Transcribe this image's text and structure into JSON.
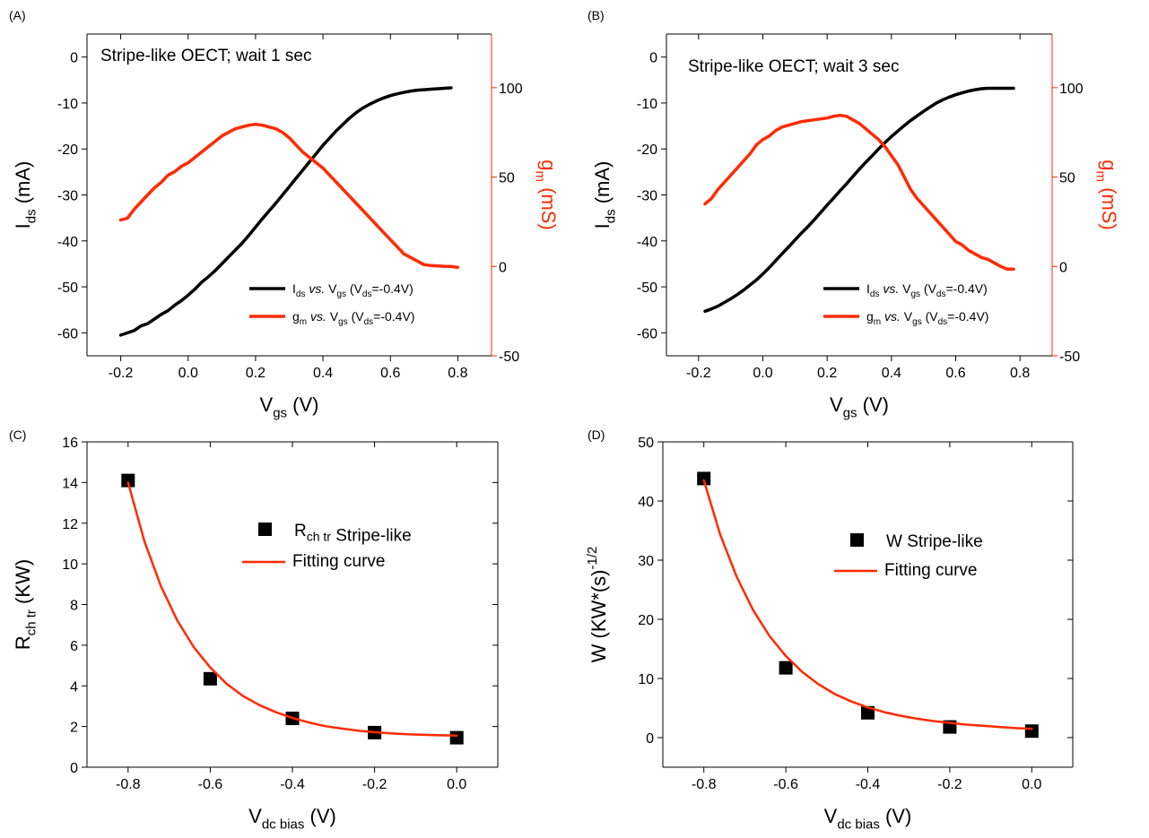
{
  "chart_data": [
    {
      "panel": "(A)",
      "type": "line",
      "annotation": "Stripe-like OECT; wait 1 sec",
      "x_label": {
        "main": "V",
        "sub": "gs",
        "tail": " (V)"
      },
      "y_label": {
        "main": "I",
        "sub": "ds",
        "tail": " (mA)"
      },
      "y2_label": {
        "main": "g",
        "sub": "m",
        "tail": " (mS)"
      },
      "xlim": [
        -0.3,
        0.9
      ],
      "ylim": [
        -65,
        5
      ],
      "y2lim": [
        -50,
        130
      ],
      "x_ticks": [
        "-0.2",
        "0.0",
        "0.2",
        "0.4",
        "0.6",
        "0.8"
      ],
      "y_ticks": [
        "0",
        "-10",
        "-20",
        "-30",
        "-40",
        "-50",
        "-60"
      ],
      "y2_ticks": [
        "100",
        "50",
        "0",
        "-50"
      ],
      "right_color": "#ff2a00",
      "series": [
        {
          "name": "Ids vs. Vgs (Vds=-0.4V)",
          "legend": {
            "main": "I",
            "sub": "ds",
            "mid": " vs.",
            "main2": " V",
            "sub2": "gs",
            "tail": " (V",
            "sub3": "ds",
            "tail2": "=-0.4V)"
          },
          "color": "#000000",
          "axis": "left",
          "x": [
            -0.2,
            -0.18,
            -0.16,
            -0.14,
            -0.12,
            -0.1,
            -0.08,
            -0.06,
            -0.04,
            -0.02,
            0.0,
            0.02,
            0.04,
            0.06,
            0.08,
            0.1,
            0.12,
            0.14,
            0.16,
            0.18,
            0.2,
            0.22,
            0.24,
            0.26,
            0.28,
            0.3,
            0.32,
            0.34,
            0.36,
            0.38,
            0.4,
            0.42,
            0.44,
            0.46,
            0.48,
            0.5,
            0.52,
            0.54,
            0.56,
            0.58,
            0.6,
            0.62,
            0.64,
            0.66,
            0.68,
            0.7,
            0.72,
            0.74,
            0.76,
            0.78
          ],
          "y": [
            -60.5,
            -60,
            -59.5,
            -58.5,
            -58,
            -57,
            -56,
            -55.2,
            -54,
            -53,
            -51.8,
            -50.5,
            -49,
            -47.8,
            -46.5,
            -45,
            -43.5,
            -42,
            -40.5,
            -38.8,
            -37,
            -35.2,
            -33.5,
            -31.8,
            -30,
            -28.2,
            -26.4,
            -24.6,
            -22.8,
            -21,
            -19.2,
            -17.6,
            -16,
            -14.6,
            -13.2,
            -12,
            -11,
            -10.2,
            -9.5,
            -8.9,
            -8.4,
            -8,
            -7.7,
            -7.4,
            -7.2,
            -7.1,
            -7.0,
            -6.9,
            -6.8,
            -6.7
          ]
        },
        {
          "name": "gm vs. Vgs (Vds=-0.4V)",
          "legend": {
            "main": "g",
            "sub": "m",
            "mid": " vs.",
            "main2": " V",
            "sub2": "gs",
            "tail": " (V",
            "sub3": "ds",
            "tail2": "=-0.4V)"
          },
          "color": "#ff2a00",
          "axis": "right",
          "x": [
            -0.2,
            -0.18,
            -0.16,
            -0.14,
            -0.12,
            -0.1,
            -0.08,
            -0.06,
            -0.04,
            -0.02,
            0.0,
            0.02,
            0.04,
            0.06,
            0.08,
            0.1,
            0.12,
            0.14,
            0.16,
            0.18,
            0.2,
            0.22,
            0.24,
            0.26,
            0.28,
            0.3,
            0.32,
            0.34,
            0.36,
            0.38,
            0.4,
            0.42,
            0.44,
            0.46,
            0.48,
            0.5,
            0.52,
            0.54,
            0.56,
            0.58,
            0.6,
            0.62,
            0.64,
            0.66,
            0.68,
            0.7,
            0.72,
            0.74,
            0.76,
            0.78,
            0.8
          ],
          "y": [
            26,
            27,
            32,
            36,
            40,
            44,
            47,
            51,
            53,
            56,
            58,
            61,
            64,
            67,
            70,
            73,
            75,
            77,
            78,
            79,
            79.5,
            79,
            78,
            77,
            75,
            72,
            68,
            64,
            61,
            58,
            55,
            51,
            47,
            43,
            39,
            35,
            31,
            27,
            23,
            19,
            15,
            11,
            7,
            5,
            3,
            1,
            0.5,
            0.3,
            0.1,
            0,
            -0.5
          ]
        }
      ]
    },
    {
      "panel": "(B)",
      "type": "line",
      "annotation": "Stripe-like OECT; wait 3 sec",
      "x_label": {
        "main": "V",
        "sub": "gs",
        "tail": " (V)"
      },
      "y_label": {
        "main": "I",
        "sub": "ds",
        "tail": " (mA)"
      },
      "y2_label": {
        "main": "g",
        "sub": "m",
        "tail": " (mS)"
      },
      "xlim": [
        -0.3,
        0.9
      ],
      "ylim": [
        -65,
        5
      ],
      "y2lim": [
        -50,
        130
      ],
      "x_ticks": [
        "-0.2",
        "0.0",
        "0.2",
        "0.4",
        "0.6",
        "0.8"
      ],
      "y_ticks": [
        "0",
        "-10",
        "-20",
        "-30",
        "-40",
        "-50",
        "-60"
      ],
      "y2_ticks": [
        "100",
        "50",
        "0",
        "-50"
      ],
      "right_color": "#ff2a00",
      "series": [
        {
          "name": "Ids vs. Vgs (Vds=-0.4V)",
          "legend": {
            "main": "I",
            "sub": "ds",
            "mid": " vs.",
            "main2": " V",
            "sub2": "gs",
            "tail": " (V",
            "sub3": "ds",
            "tail2": "=-0.4V)"
          },
          "color": "#000000",
          "axis": "left",
          "x": [
            -0.18,
            -0.16,
            -0.14,
            -0.12,
            -0.1,
            -0.08,
            -0.06,
            -0.04,
            -0.02,
            0.0,
            0.02,
            0.04,
            0.06,
            0.08,
            0.1,
            0.12,
            0.14,
            0.16,
            0.18,
            0.2,
            0.22,
            0.24,
            0.26,
            0.28,
            0.3,
            0.32,
            0.34,
            0.36,
            0.38,
            0.4,
            0.42,
            0.44,
            0.46,
            0.48,
            0.5,
            0.52,
            0.54,
            0.56,
            0.58,
            0.6,
            0.62,
            0.64,
            0.66,
            0.68,
            0.7,
            0.72,
            0.74,
            0.76,
            0.78
          ],
          "y": [
            -55.3,
            -54.8,
            -54.2,
            -53.4,
            -52.6,
            -51.7,
            -50.7,
            -49.6,
            -48.5,
            -47.2,
            -45.8,
            -44.3,
            -42.8,
            -41.3,
            -39.8,
            -38.3,
            -36.9,
            -35.4,
            -33.8,
            -32.2,
            -30.7,
            -29.1,
            -27.6,
            -26.0,
            -24.4,
            -22.9,
            -21.5,
            -20.0,
            -18.6,
            -17.3,
            -16.1,
            -14.9,
            -13.8,
            -12.8,
            -11.8,
            -10.9,
            -10.0,
            -9.3,
            -8.7,
            -8.2,
            -7.8,
            -7.4,
            -7.1,
            -6.9,
            -6.8,
            -6.8,
            -6.8,
            -6.8,
            -6.8
          ]
        },
        {
          "name": "gm vs. Vgs (Vds=-0.4V)",
          "legend": {
            "main": "g",
            "sub": "m",
            "mid": " vs.",
            "main2": " V",
            "sub2": "gs",
            "tail": " (V",
            "sub3": "ds",
            "tail2": "=-0.4V)"
          },
          "color": "#ff2a00",
          "axis": "right",
          "x": [
            -0.18,
            -0.16,
            -0.14,
            -0.12,
            -0.1,
            -0.08,
            -0.06,
            -0.04,
            -0.02,
            0.0,
            0.02,
            0.04,
            0.06,
            0.08,
            0.1,
            0.12,
            0.14,
            0.16,
            0.18,
            0.2,
            0.22,
            0.24,
            0.26,
            0.28,
            0.3,
            0.32,
            0.34,
            0.36,
            0.38,
            0.4,
            0.42,
            0.44,
            0.46,
            0.48,
            0.5,
            0.52,
            0.54,
            0.56,
            0.58,
            0.6,
            0.62,
            0.64,
            0.66,
            0.68,
            0.7,
            0.72,
            0.74,
            0.76,
            0.78
          ],
          "y": [
            35,
            38,
            43,
            47,
            51,
            55,
            59,
            63,
            68,
            71,
            73,
            76,
            78,
            79,
            80,
            81,
            81.5,
            82,
            82.5,
            83,
            84,
            84.5,
            84,
            82,
            80,
            77,
            74,
            71,
            67,
            62,
            57,
            50,
            43,
            38,
            34,
            30,
            26,
            22,
            18,
            14,
            12,
            9,
            7,
            5,
            4,
            2,
            0,
            -1.5,
            -1.5
          ]
        }
      ]
    },
    {
      "panel": "(C)",
      "type": "scatter",
      "x_label": {
        "main": "V",
        "sub": "dc bias",
        "tail": " (V)"
      },
      "y_label": {
        "main": "R",
        "sub": "ch tr",
        "tail": " (KW)"
      },
      "xlim": [
        -0.9,
        0.1
      ],
      "ylim": [
        0,
        16
      ],
      "x_ticks": [
        "-0.8",
        "-0.6",
        "-0.4",
        "-0.2",
        "0.0"
      ],
      "y_ticks": [
        "0",
        "2",
        "4",
        "6",
        "8",
        "10",
        "12",
        "14",
        "16"
      ],
      "series": [
        {
          "name": "Rch tr Stripe-like",
          "legend": {
            "main": "R",
            "sub": "ch tr",
            "tail": " Stripe-like"
          },
          "marker": "square",
          "color": "#000000",
          "x": [
            -0.8,
            -0.6,
            -0.4,
            -0.2,
            0.0
          ],
          "y": [
            14.1,
            4.35,
            2.4,
            1.7,
            1.45
          ]
        },
        {
          "name": "Fitting curve",
          "legend": {
            "main": "Fitting curve"
          },
          "color": "#ff2a00",
          "x": [
            -0.8,
            -0.76,
            -0.72,
            -0.68,
            -0.64,
            -0.6,
            -0.56,
            -0.52,
            -0.48,
            -0.44,
            -0.4,
            -0.36,
            -0.32,
            -0.28,
            -0.24,
            -0.2,
            -0.16,
            -0.12,
            -0.08,
            -0.04,
            0.0
          ],
          "y": [
            14.0,
            11.1,
            8.9,
            7.2,
            5.9,
            4.9,
            4.1,
            3.5,
            3.05,
            2.7,
            2.42,
            2.2,
            2.02,
            1.9,
            1.8,
            1.72,
            1.66,
            1.62,
            1.59,
            1.57,
            1.55
          ]
        }
      ]
    },
    {
      "panel": "(D)",
      "type": "scatter",
      "x_label": {
        "main": "V",
        "sub": "dc bias",
        "tail": " (V)"
      },
      "y_label": {
        "main": "W (KW*(s)",
        "sup": "-1/2",
        "tail": ""
      },
      "xlim": [
        -0.9,
        0.1
      ],
      "ylim": [
        -5,
        50
      ],
      "x_ticks": [
        "-0.8",
        "-0.6",
        "-0.4",
        "-0.2",
        "0.0"
      ],
      "y_ticks": [
        "0",
        "10",
        "20",
        "30",
        "40",
        "50"
      ],
      "series": [
        {
          "name": "W Stripe-like",
          "legend": {
            "main": "W Stripe-like"
          },
          "marker": "square",
          "color": "#000000",
          "x": [
            -0.8,
            -0.6,
            -0.4,
            -0.2,
            0.0
          ],
          "y": [
            43.8,
            11.8,
            4.2,
            1.8,
            1.1
          ]
        },
        {
          "name": "Fitting curve",
          "legend": {
            "main": "Fitting curve"
          },
          "color": "#ff2a00",
          "x": [
            -0.8,
            -0.76,
            -0.72,
            -0.68,
            -0.64,
            -0.6,
            -0.56,
            -0.52,
            -0.48,
            -0.44,
            -0.4,
            -0.36,
            -0.32,
            -0.28,
            -0.24,
            -0.2,
            -0.16,
            -0.12,
            -0.08,
            -0.04,
            0.0
          ],
          "y": [
            43.5,
            34.3,
            27.2,
            21.6,
            17.2,
            13.8,
            11.1,
            9.0,
            7.35,
            6.1,
            5.1,
            4.3,
            3.7,
            3.2,
            2.8,
            2.5,
            2.2,
            2.0,
            1.8,
            1.6,
            1.5
          ]
        }
      ]
    }
  ]
}
